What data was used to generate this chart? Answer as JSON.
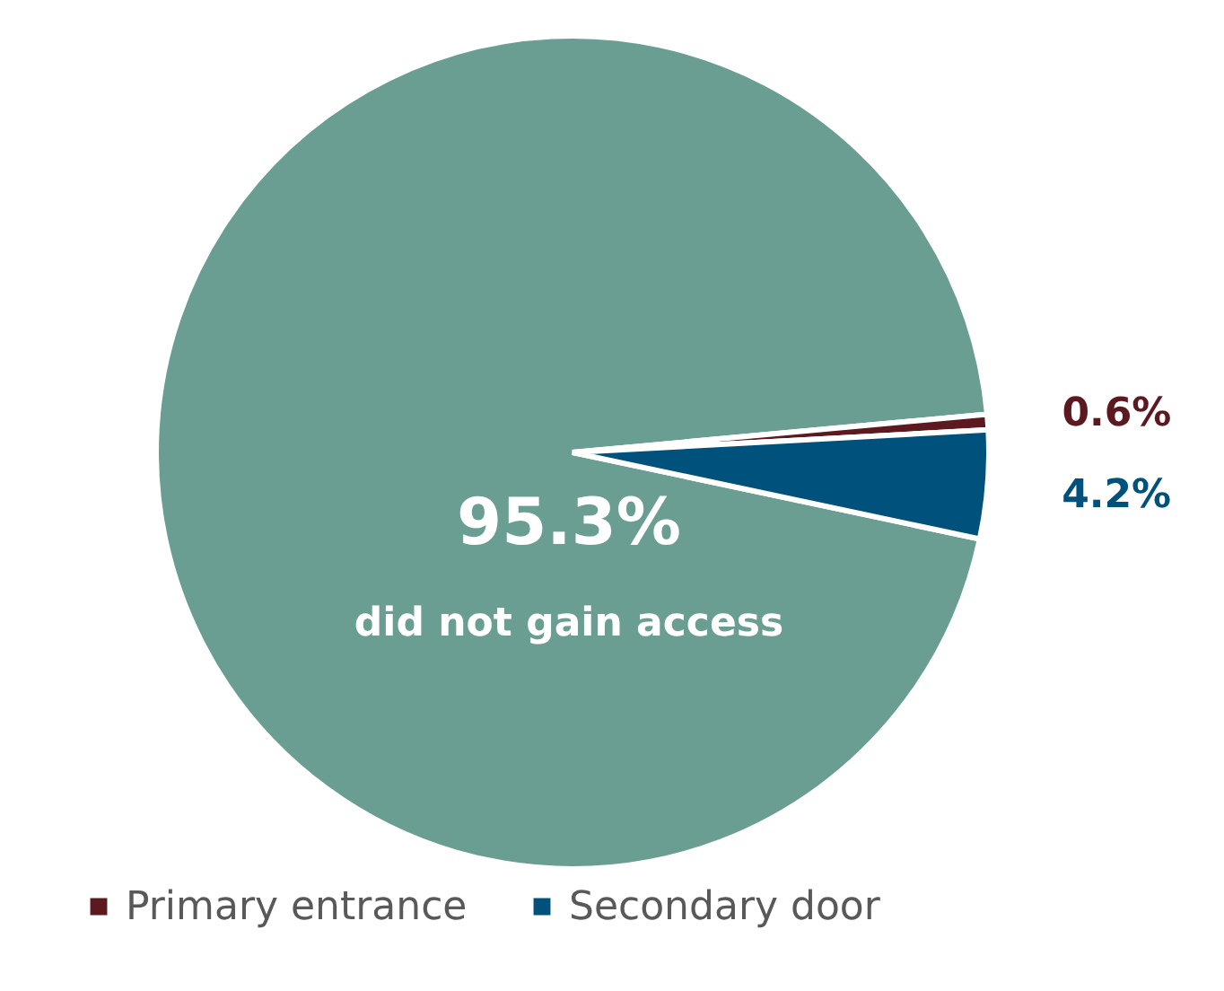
{
  "chart_data": {
    "type": "pie",
    "categories": [
      "did not gain access",
      "Primary entrance",
      "Secondary door"
    ],
    "values": [
      95.3,
      0.6,
      4.2
    ],
    "colors": [
      "#6b9e92",
      "#5c1a20",
      "#00527c"
    ],
    "value_labels": [
      "95.3%",
      "0.6%",
      "4.2%"
    ],
    "legend": "bottom left"
  }
}
